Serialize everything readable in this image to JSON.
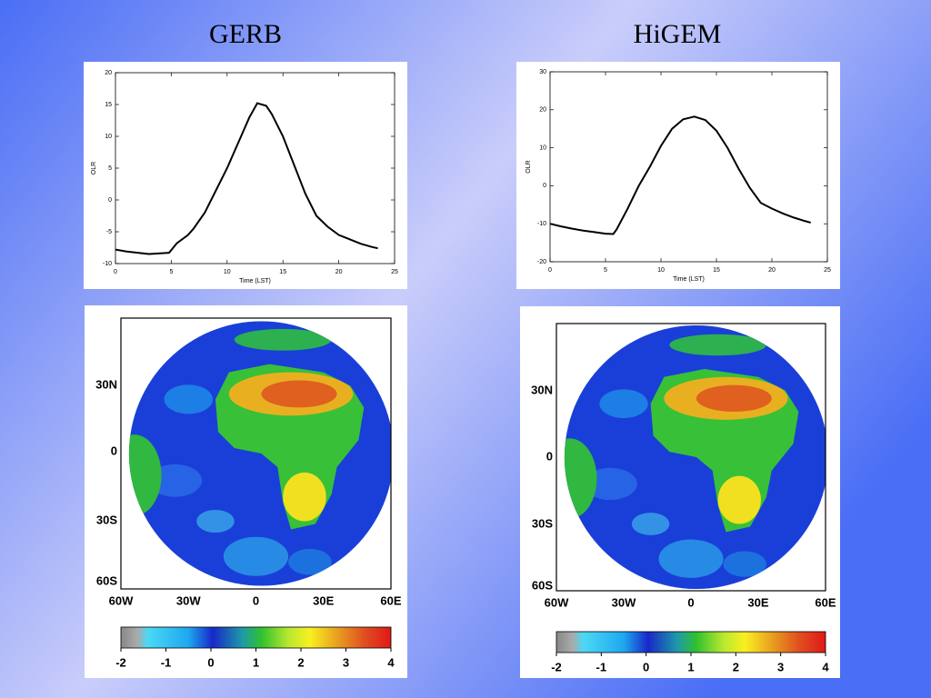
{
  "chart_data": [
    {
      "type": "line",
      "title": "GERB",
      "xlabel": "Time (LST)",
      "ylabel": "OLR",
      "x": [
        0,
        1,
        2,
        3,
        4,
        4.8,
        5.5,
        6.5,
        7,
        8,
        9,
        10,
        11,
        12,
        12.7,
        13.5,
        14,
        15,
        16,
        17,
        18,
        19,
        20,
        21,
        22,
        23,
        23.5
      ],
      "series": [
        {
          "color": "#000000",
          "values": [
            -7.8,
            -8.1,
            -8.3,
            -8.5,
            -8.4,
            -8.3,
            -6.8,
            -5.5,
            -4.5,
            -2,
            1.5,
            5,
            9,
            13,
            15.2,
            14.8,
            13.5,
            10,
            5.5,
            1,
            -2.5,
            -4.2,
            -5.5,
            -6.2,
            -6.9,
            -7.4,
            -7.6
          ]
        }
      ],
      "xlim": [
        0,
        25
      ],
      "xticks": [
        0,
        5,
        10,
        15,
        20,
        25
      ],
      "ylim": [
        -10,
        20
      ],
      "yticks": [
        -10,
        -5,
        0,
        5,
        10,
        15,
        20
      ]
    },
    {
      "type": "line",
      "title": "HiGEM",
      "xlabel": "Time (LST)",
      "ylabel": "OLR",
      "x": [
        0,
        1,
        2,
        3,
        4,
        5,
        5.7,
        6,
        7,
        8,
        9,
        10,
        11,
        12,
        13,
        14,
        15,
        16,
        17,
        18,
        19,
        20,
        21,
        22,
        23,
        23.5
      ],
      "series": [
        {
          "color": "#000000",
          "values": [
            -10,
            -10.7,
            -11.3,
            -11.8,
            -12.2,
            -12.6,
            -12.7,
            -11.5,
            -6,
            0,
            5,
            10.5,
            15,
            17.5,
            18.2,
            17.3,
            14.5,
            10,
            4.5,
            -0.5,
            -4.5,
            -6,
            -7.3,
            -8.4,
            -9.3,
            -9.7
          ]
        }
      ],
      "xlim": [
        0,
        25
      ],
      "xticks": [
        0,
        5,
        10,
        15,
        20,
        25
      ],
      "ylim": [
        -20,
        30
      ],
      "yticks": [
        -20,
        -10,
        0,
        10,
        20,
        30
      ]
    }
  ],
  "maps": [
    {
      "lat_labels": [
        "30N",
        "0",
        "30S",
        "60S"
      ],
      "lon_labels": [
        "60W",
        "30W",
        "0",
        "30E",
        "60E"
      ],
      "colorbar": {
        "lim": [
          -2,
          4
        ],
        "ticks": [
          -2,
          -1,
          0,
          1,
          2,
          3,
          4
        ]
      }
    },
    {
      "lat_labels": [
        "30N",
        "0",
        "30S",
        "60S"
      ],
      "lon_labels": [
        "60W",
        "30W",
        "0",
        "30E",
        "60E"
      ],
      "colorbar": {
        "lim": [
          -2,
          4
        ],
        "ticks": [
          -2,
          -1,
          0,
          1,
          2,
          3,
          4
        ]
      }
    }
  ]
}
